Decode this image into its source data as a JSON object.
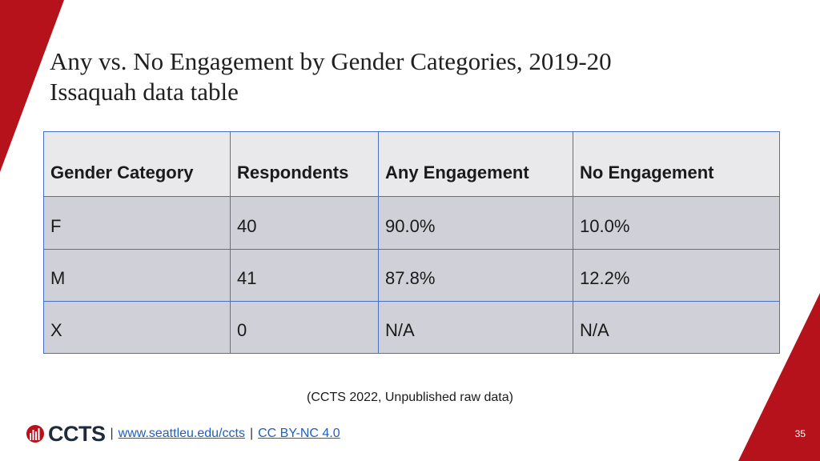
{
  "slide": {
    "title_line1": "Any vs. No Engagement by Gender Categories, 2019-20",
    "title_line2": "Issaquah data table",
    "colors": {
      "accent": "#b5121b",
      "table_border": "#4472c4",
      "header_bg": "#e9e9ec",
      "row_bg": "#d0d0d8"
    }
  },
  "table": {
    "headers": [
      "Gender Category",
      "Respondents",
      "Any Engagement",
      "No Engagement"
    ],
    "rows": [
      [
        "F",
        "40",
        "90.0%",
        "10.0%"
      ],
      [
        "M",
        "41",
        "87.8%",
        "12.2%"
      ],
      [
        "X",
        "0",
        "N/A",
        "N/A"
      ]
    ]
  },
  "source": "(CCTS 2022, Unpublished raw data)",
  "footer": {
    "logo_text": "CCTS",
    "separator": "|",
    "website_link": "www.seattleu.edu/ccts",
    "license_link": "CC BY-NC 4.0",
    "logo_icon": "bar-chart-globe-icon"
  },
  "page_number": "35"
}
